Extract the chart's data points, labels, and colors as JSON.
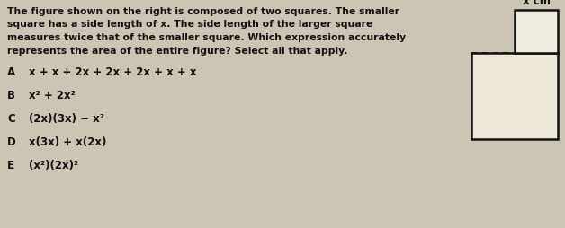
{
  "bg_color": "#cdc5b4",
  "text_color": "#111111",
  "title_lines": [
    "The figure shown on the right is composed of two squares. The smaller",
    "square has a side length of x. The side length of the larger square",
    "measures twice that of the smaller square. Which expression accurately",
    "represents the area of the entire figure? Select all that apply."
  ],
  "options": [
    {
      "label": "A",
      "expr": "x + x + 2x + 2x + 2x + x + x"
    },
    {
      "label": "B",
      "expr": "x² + 2x²"
    },
    {
      "label": "C",
      "expr": "(2x)(3x) − x²"
    },
    {
      "label": "D",
      "expr": "x(3x) + x(2x)"
    },
    {
      "label": "E",
      "expr": "(x²)(2x)²"
    }
  ],
  "title_fontsize": 7.8,
  "option_label_fontsize": 8.5,
  "option_expr_fontsize": 8.5,
  "diagram_label": "x cm",
  "diagram_label_fontsize": 8.5,
  "small_sq_color": "#f0ece0",
  "large_sq_color": "#ede8d8",
  "sq_edge_color": "#111111",
  "sq_linewidth": 1.8,
  "dot_linewidth": 1.2,
  "dot_color": "#111111"
}
